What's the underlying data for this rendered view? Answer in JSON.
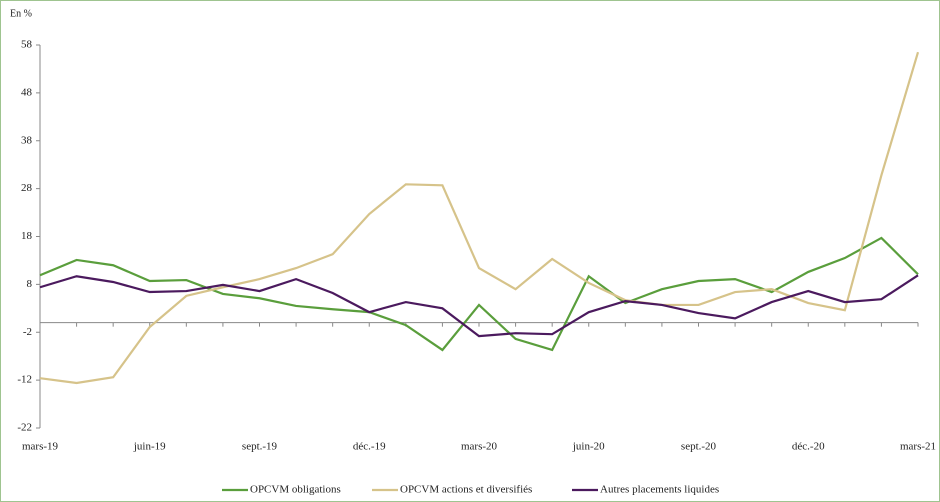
{
  "chart_data": {
    "type": "line",
    "unit_label": "En %",
    "categories": [
      "mars-19",
      null,
      null,
      "juin-19",
      null,
      null,
      "sept.-19",
      null,
      null,
      "déc.-19",
      null,
      null,
      "mars-20",
      null,
      null,
      "juin-20",
      null,
      null,
      "sept.-20",
      null,
      null,
      "déc.-20",
      null,
      null,
      "mars-21"
    ],
    "ylim": [
      -22,
      58
    ],
    "yticks": [
      -22,
      -12,
      -2,
      8,
      18,
      28,
      38,
      48,
      58
    ],
    "series": [
      {
        "name": "OPCVM obligations",
        "color": "#5a9e3c",
        "values": [
          9.9,
          13.1,
          12.0,
          8.7,
          8.9,
          6.0,
          5.1,
          3.5,
          2.8,
          2.2,
          -0.5,
          -5.7,
          3.7,
          -3.4,
          -5.7,
          9.7,
          4.1,
          7.0,
          8.7,
          9.1,
          6.4,
          10.6,
          13.5,
          17.7,
          10.1
        ]
      },
      {
        "name": "OPCVM actions et diversifiés",
        "color": "#d6c38a",
        "values": [
          -11.6,
          -12.6,
          -11.4,
          -0.9,
          5.6,
          7.4,
          9.1,
          11.4,
          14.3,
          22.7,
          28.9,
          28.7,
          11.4,
          7.0,
          13.3,
          8.3,
          4.7,
          3.7,
          3.7,
          6.4,
          7.0,
          4.1,
          2.6,
          30.8,
          56.5
        ]
      },
      {
        "name": "Autres placements liquides",
        "color": "#4b1a5e",
        "values": [
          7.4,
          9.7,
          8.5,
          6.4,
          6.6,
          7.9,
          6.6,
          9.1,
          6.2,
          2.2,
          4.3,
          3.0,
          -2.8,
          -2.2,
          -2.4,
          2.2,
          4.5,
          3.7,
          2.0,
          0.9,
          4.3,
          6.6,
          4.3,
          4.9,
          9.9
        ]
      }
    ]
  }
}
